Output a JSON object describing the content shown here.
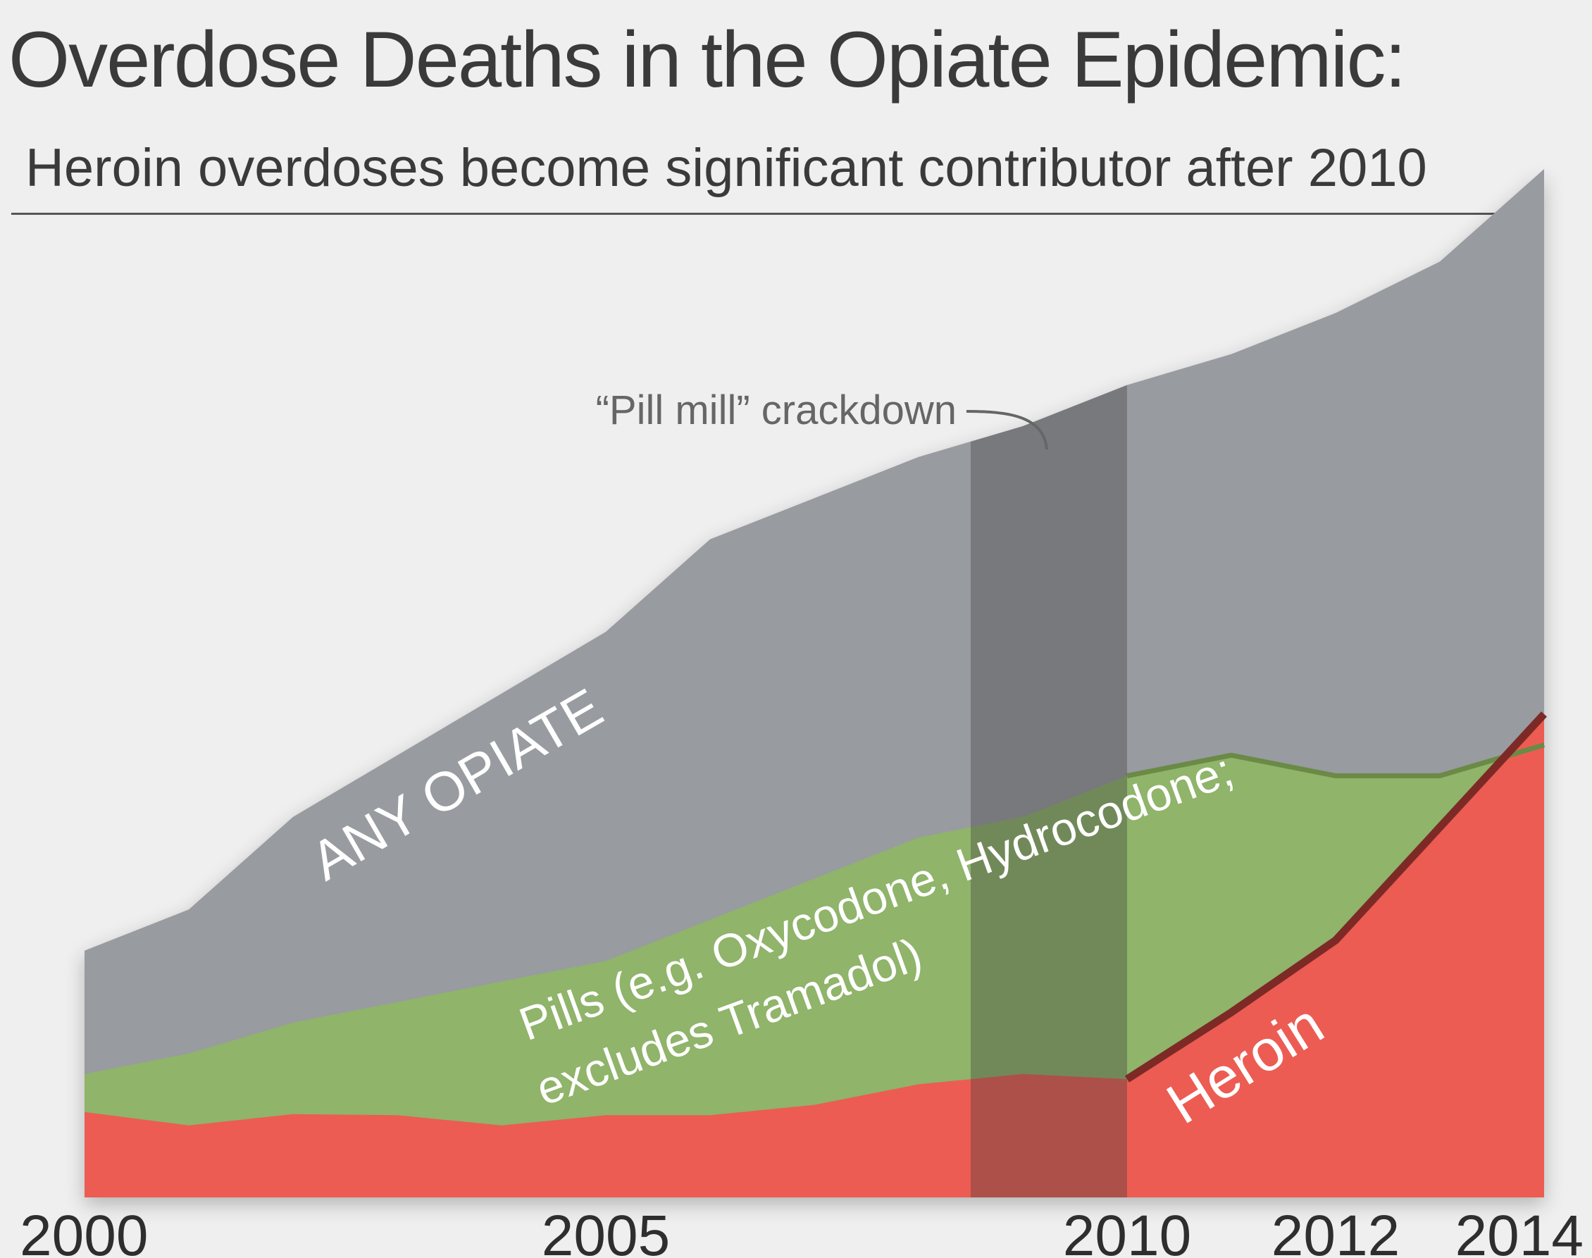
{
  "header": {
    "title": "Overdose Deaths in the Opiate Epidemic:",
    "subtitle": "Heroin overdoses become significant contributor after 2010"
  },
  "chart_data": {
    "type": "area",
    "title": "Overdose Deaths in the Opiate Epidemic:",
    "subtitle": "Heroin overdoses become significant contributor after 2010",
    "x": [
      2000,
      2001,
      2002,
      2003,
      2004,
      2005,
      2006,
      2007,
      2008,
      2009,
      2010,
      2011,
      2012,
      2013,
      2014
    ],
    "xtick_labels": [
      "2000",
      "2005",
      "2010",
      "2012",
      "2014"
    ],
    "xticks": [
      2000,
      2005,
      2010,
      2012,
      2014
    ],
    "xlim": [
      2000,
      2014
    ],
    "ylim": [
      0,
      100
    ],
    "grid": false,
    "legend": "none (direct labels)",
    "series": [
      {
        "name": "ANY OPIATE",
        "color": "#989ba0",
        "values": [
          24,
          28,
          37,
          43,
          49,
          55,
          64,
          68,
          72,
          75,
          79,
          82,
          86,
          91,
          100
        ]
      },
      {
        "name": "Pills (e.g. Oxycodone, Hydrocodone; excludes Tramadol)",
        "color": "#8fb46a",
        "values": [
          12,
          14,
          17,
          19,
          21,
          23,
          27,
          31,
          35,
          37,
          41,
          43,
          41,
          41,
          44
        ]
      },
      {
        "name": "Heroin",
        "color": "#ec5c52",
        "values": [
          8.3,
          7,
          8.1,
          8,
          7,
          8,
          8,
          9,
          11,
          12,
          11.5,
          18,
          25,
          36,
          47
        ]
      }
    ],
    "highlight": {
      "x_from": 2008.5,
      "x_to": 2010
    },
    "annotations": [
      {
        "text": "“Pill mill” crackdown",
        "x": 2009.8
      }
    ],
    "colors": {
      "any_opiate": "#989ba0",
      "pills": "#8fb46a",
      "pills_line": "#6a8a45",
      "heroin": "#ec5c52",
      "heroin_line": "#7d2a26",
      "crackdown_band": "#3a3a3a",
      "annotation": "#666666"
    }
  }
}
